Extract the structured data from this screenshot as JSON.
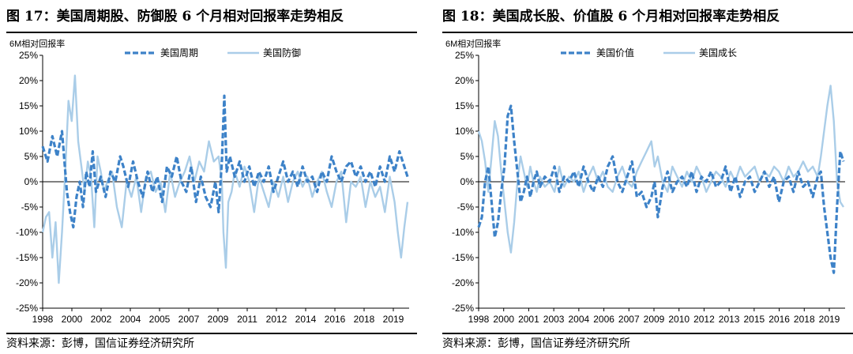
{
  "charts": [
    {
      "figure_title": "图 17：美国周期股、防御股 6 个月相对回报率走势相反",
      "source": "资料来源：彭博，国信证券经济研究所"
    },
    {
      "figure_title": "图 18：美国成长股、价值股 6 个月相对回报率走势相反",
      "source": "资料来源：彭博，国信证券经济研究所"
    }
  ],
  "chart_data": [
    {
      "type": "line",
      "ylabel": "6M相对回报率",
      "ylim": [
        -25,
        25
      ],
      "y_ticks": [
        "25%",
        "20%",
        "15%",
        "10%",
        "5%",
        "0%",
        "-5%",
        "-10%",
        "-15%",
        "-20%",
        "-25%"
      ],
      "xlim": [
        1998,
        2020.7
      ],
      "x_tick_labels": [
        "1998",
        "2000",
        "2002",
        "2004",
        "2005",
        "2007",
        "2009",
        "2011",
        "2012",
        "2014",
        "2016",
        "2018",
        "2019"
      ],
      "legend_position": "top-center",
      "grid": false,
      "series": [
        {
          "name": "美国周期",
          "color": "#3d82c8",
          "style": "dashed",
          "x": [
            1998.0,
            1998.3,
            1998.6,
            1998.9,
            1999.2,
            1999.5,
            1999.7,
            1999.9,
            2000.1,
            2000.3,
            2000.5,
            2000.7,
            2000.9,
            2001.1,
            2001.3,
            2001.6,
            2001.9,
            2002.2,
            2002.5,
            2002.8,
            2003.0,
            2003.3,
            2003.6,
            2003.9,
            2004.2,
            2004.5,
            2004.8,
            2005.1,
            2005.4,
            2005.7,
            2006.0,
            2006.3,
            2006.6,
            2006.9,
            2007.2,
            2007.5,
            2007.8,
            2008.1,
            2008.4,
            2008.7,
            2008.9,
            2009.1,
            2009.25,
            2009.4,
            2009.6,
            2009.9,
            2010.2,
            2010.5,
            2010.8,
            2011.1,
            2011.4,
            2011.7,
            2012.0,
            2012.3,
            2012.6,
            2012.9,
            2013.2,
            2013.5,
            2013.8,
            2014.1,
            2014.4,
            2014.7,
            2015.0,
            2015.3,
            2015.6,
            2015.9,
            2016.2,
            2016.5,
            2016.8,
            2017.1,
            2017.4,
            2017.7,
            2018.0,
            2018.3,
            2018.6,
            2018.9,
            2019.2,
            2019.5,
            2019.8,
            2020.1,
            2020.4,
            2020.6
          ],
          "y": [
            7,
            4,
            9,
            5,
            10,
            -2,
            -6,
            -9,
            -3,
            0,
            -5,
            2,
            -1,
            6,
            -2,
            1,
            -3,
            2,
            0,
            5,
            3,
            -1,
            4,
            0,
            -3,
            2,
            -2,
            1,
            -4,
            3,
            1,
            5,
            0,
            -2,
            3,
            -4,
            1,
            -3,
            -5,
            0,
            -6,
            4,
            17,
            2,
            5,
            1,
            4,
            0,
            3,
            -1,
            2,
            0,
            3,
            -2,
            1,
            4,
            0,
            2,
            -1,
            3,
            0,
            1,
            -2,
            2,
            0,
            5,
            2,
            0,
            3,
            4,
            1,
            3,
            0,
            2,
            -1,
            3,
            0,
            5,
            2,
            6,
            3,
            1
          ]
        },
        {
          "name": "美国防御",
          "color": "#aacde8",
          "style": "solid",
          "x": [
            1998.0,
            1998.2,
            1998.4,
            1998.6,
            1998.8,
            1999.0,
            1999.2,
            1999.4,
            1999.6,
            1999.8,
            2000.0,
            2000.2,
            2000.4,
            2000.6,
            2000.8,
            2001.0,
            2001.2,
            2001.4,
            2001.6,
            2001.8,
            2002.0,
            2002.3,
            2002.6,
            2002.9,
            2003.2,
            2003.5,
            2003.8,
            2004.1,
            2004.4,
            2004.7,
            2005.0,
            2005.3,
            2005.6,
            2005.9,
            2006.2,
            2006.5,
            2006.8,
            2007.1,
            2007.4,
            2007.7,
            2008.0,
            2008.3,
            2008.6,
            2008.9,
            2009.1,
            2009.2,
            2009.35,
            2009.5,
            2009.7,
            2009.9,
            2010.2,
            2010.5,
            2010.8,
            2011.1,
            2011.4,
            2011.7,
            2012.0,
            2012.3,
            2012.6,
            2012.9,
            2013.2,
            2013.5,
            2013.8,
            2014.1,
            2014.4,
            2014.7,
            2015.0,
            2015.3,
            2015.6,
            2015.9,
            2016.2,
            2016.5,
            2016.8,
            2017.1,
            2017.4,
            2017.7,
            2018.0,
            2018.3,
            2018.6,
            2018.9,
            2019.2,
            2019.5,
            2019.8,
            2020.0,
            2020.2,
            2020.4,
            2020.6
          ],
          "y": [
            -10,
            -7,
            -6,
            -15,
            -8,
            -20,
            -10,
            2,
            16,
            12,
            21,
            8,
            3,
            -2,
            4,
            1,
            -9,
            5,
            2,
            -2,
            0,
            2,
            -5,
            -9,
            0,
            -3,
            1,
            -6,
            1,
            2,
            -2,
            0,
            -6,
            2,
            -3,
            0,
            2,
            5,
            0,
            4,
            2,
            8,
            4,
            5,
            0,
            -10,
            -17,
            -4,
            -2,
            2,
            -1,
            3,
            0,
            -6,
            1,
            -2,
            -5,
            0,
            -3,
            1,
            -4,
            0,
            2,
            -1,
            1,
            -3,
            0,
            2,
            -2,
            -5,
            0,
            2,
            -8,
            0,
            -1,
            1,
            -5,
            0,
            -3,
            -1,
            -6,
            1,
            -4,
            -10,
            -15,
            -9,
            -4
          ]
        }
      ]
    },
    {
      "type": "line",
      "ylabel": "6M相对回报率",
      "ylim": [
        -25,
        25
      ],
      "y_ticks": [
        "25%",
        "20%",
        "15%",
        "10%",
        "5%",
        "0%",
        "-5%",
        "-10%",
        "-15%",
        "-20%",
        "-25%"
      ],
      "xlim": [
        1998,
        2020.7
      ],
      "x_tick_labels": [
        "1998",
        "2000",
        "2001",
        "2003",
        "2004",
        "2006",
        "2007",
        "2009",
        "2010",
        "2012",
        "2013",
        "2015",
        "2016",
        "2018",
        "2019"
      ],
      "legend_position": "top-center",
      "grid": false,
      "series": [
        {
          "name": "美国价值",
          "color": "#3d82c8",
          "style": "dashed",
          "x": [
            1998.0,
            1998.2,
            1998.4,
            1998.6,
            1998.8,
            1999.0,
            1999.2,
            1999.4,
            1999.6,
            1999.8,
            2000.0,
            2000.2,
            2000.4,
            2000.6,
            2000.8,
            2001.0,
            2001.2,
            2001.4,
            2001.6,
            2001.8,
            2002.1,
            2002.4,
            2002.7,
            2003.0,
            2003.3,
            2003.6,
            2003.9,
            2004.2,
            2004.5,
            2004.8,
            2005.1,
            2005.4,
            2005.7,
            2006.0,
            2006.3,
            2006.6,
            2006.9,
            2007.2,
            2007.5,
            2007.8,
            2008.1,
            2008.4,
            2008.7,
            2008.9,
            2009.1,
            2009.4,
            2009.7,
            2010.0,
            2010.3,
            2010.6,
            2010.9,
            2011.2,
            2011.5,
            2011.8,
            2012.1,
            2012.4,
            2012.7,
            2013.0,
            2013.3,
            2013.6,
            2013.9,
            2014.2,
            2014.5,
            2014.8,
            2015.1,
            2015.4,
            2015.7,
            2016.0,
            2016.3,
            2016.6,
            2016.9,
            2017.2,
            2017.5,
            2017.8,
            2018.1,
            2018.4,
            2018.7,
            2019.0,
            2019.2,
            2019.4,
            2019.6,
            2019.8,
            2020.0,
            2020.2,
            2020.4,
            2020.6
          ],
          "y": [
            -9,
            -7,
            0,
            3,
            -4,
            -11,
            -8,
            -2,
            3,
            13,
            15,
            8,
            2,
            -4,
            -2,
            1,
            -3,
            0,
            2,
            -1,
            1,
            0,
            3,
            -2,
            1,
            0,
            2,
            -1,
            3,
            0,
            -2,
            1,
            -1,
            3,
            5,
            0,
            -2,
            1,
            4,
            -3,
            -2,
            -5,
            -3,
            0,
            -7,
            -1,
            2,
            -2,
            0,
            1,
            -1,
            2,
            -2,
            1,
            0,
            2,
            -1,
            0,
            3,
            -2,
            1,
            -3,
            0,
            1,
            -2,
            0,
            2,
            -1,
            1,
            -4,
            0,
            1,
            -2,
            2,
            -1,
            0,
            -3,
            1,
            2,
            -5,
            -10,
            -15,
            -18,
            -5,
            6,
            4
          ]
        },
        {
          "name": "美国成长",
          "color": "#aacde8",
          "style": "solid",
          "x": [
            1998.0,
            1998.2,
            1998.4,
            1998.6,
            1998.8,
            1999.0,
            1999.2,
            1999.4,
            1999.6,
            1999.8,
            2000.0,
            2000.2,
            2000.4,
            2000.6,
            2000.8,
            2001.0,
            2001.2,
            2001.4,
            2001.6,
            2001.8,
            2002.1,
            2002.4,
            2002.7,
            2003.0,
            2003.3,
            2003.6,
            2003.9,
            2004.2,
            2004.5,
            2004.8,
            2005.1,
            2005.4,
            2005.7,
            2006.0,
            2006.3,
            2006.6,
            2006.9,
            2007.2,
            2007.5,
            2007.8,
            2008.1,
            2008.4,
            2008.7,
            2008.9,
            2009.1,
            2009.4,
            2009.7,
            2010.0,
            2010.3,
            2010.6,
            2010.9,
            2011.2,
            2011.5,
            2011.8,
            2012.1,
            2012.4,
            2012.7,
            2013.0,
            2013.3,
            2013.6,
            2013.9,
            2014.2,
            2014.5,
            2014.8,
            2015.1,
            2015.4,
            2015.7,
            2016.0,
            2016.3,
            2016.6,
            2016.9,
            2017.2,
            2017.5,
            2017.8,
            2018.1,
            2018.4,
            2018.7,
            2019.0,
            2019.2,
            2019.4,
            2019.6,
            2019.8,
            2020.0,
            2020.2,
            2020.4,
            2020.6
          ],
          "y": [
            10,
            8,
            4,
            -2,
            5,
            12,
            9,
            2,
            -4,
            -10,
            -14,
            -8,
            0,
            5,
            2,
            -1,
            3,
            0,
            -2,
            1,
            -1,
            0,
            -2,
            3,
            -1,
            1,
            0,
            2,
            -2,
            1,
            3,
            0,
            2,
            -1,
            -2,
            1,
            3,
            0,
            -1,
            2,
            4,
            6,
            8,
            3,
            5,
            0,
            -2,
            3,
            1,
            -1,
            2,
            0,
            3,
            1,
            -2,
            0,
            2,
            1,
            -1,
            2,
            0,
            3,
            1,
            2,
            3,
            0,
            2,
            1,
            3,
            2,
            0,
            3,
            1,
            2,
            4,
            2,
            3,
            1,
            5,
            10,
            15,
            19,
            12,
            0,
            -4,
            -5
          ]
        }
      ]
    }
  ]
}
